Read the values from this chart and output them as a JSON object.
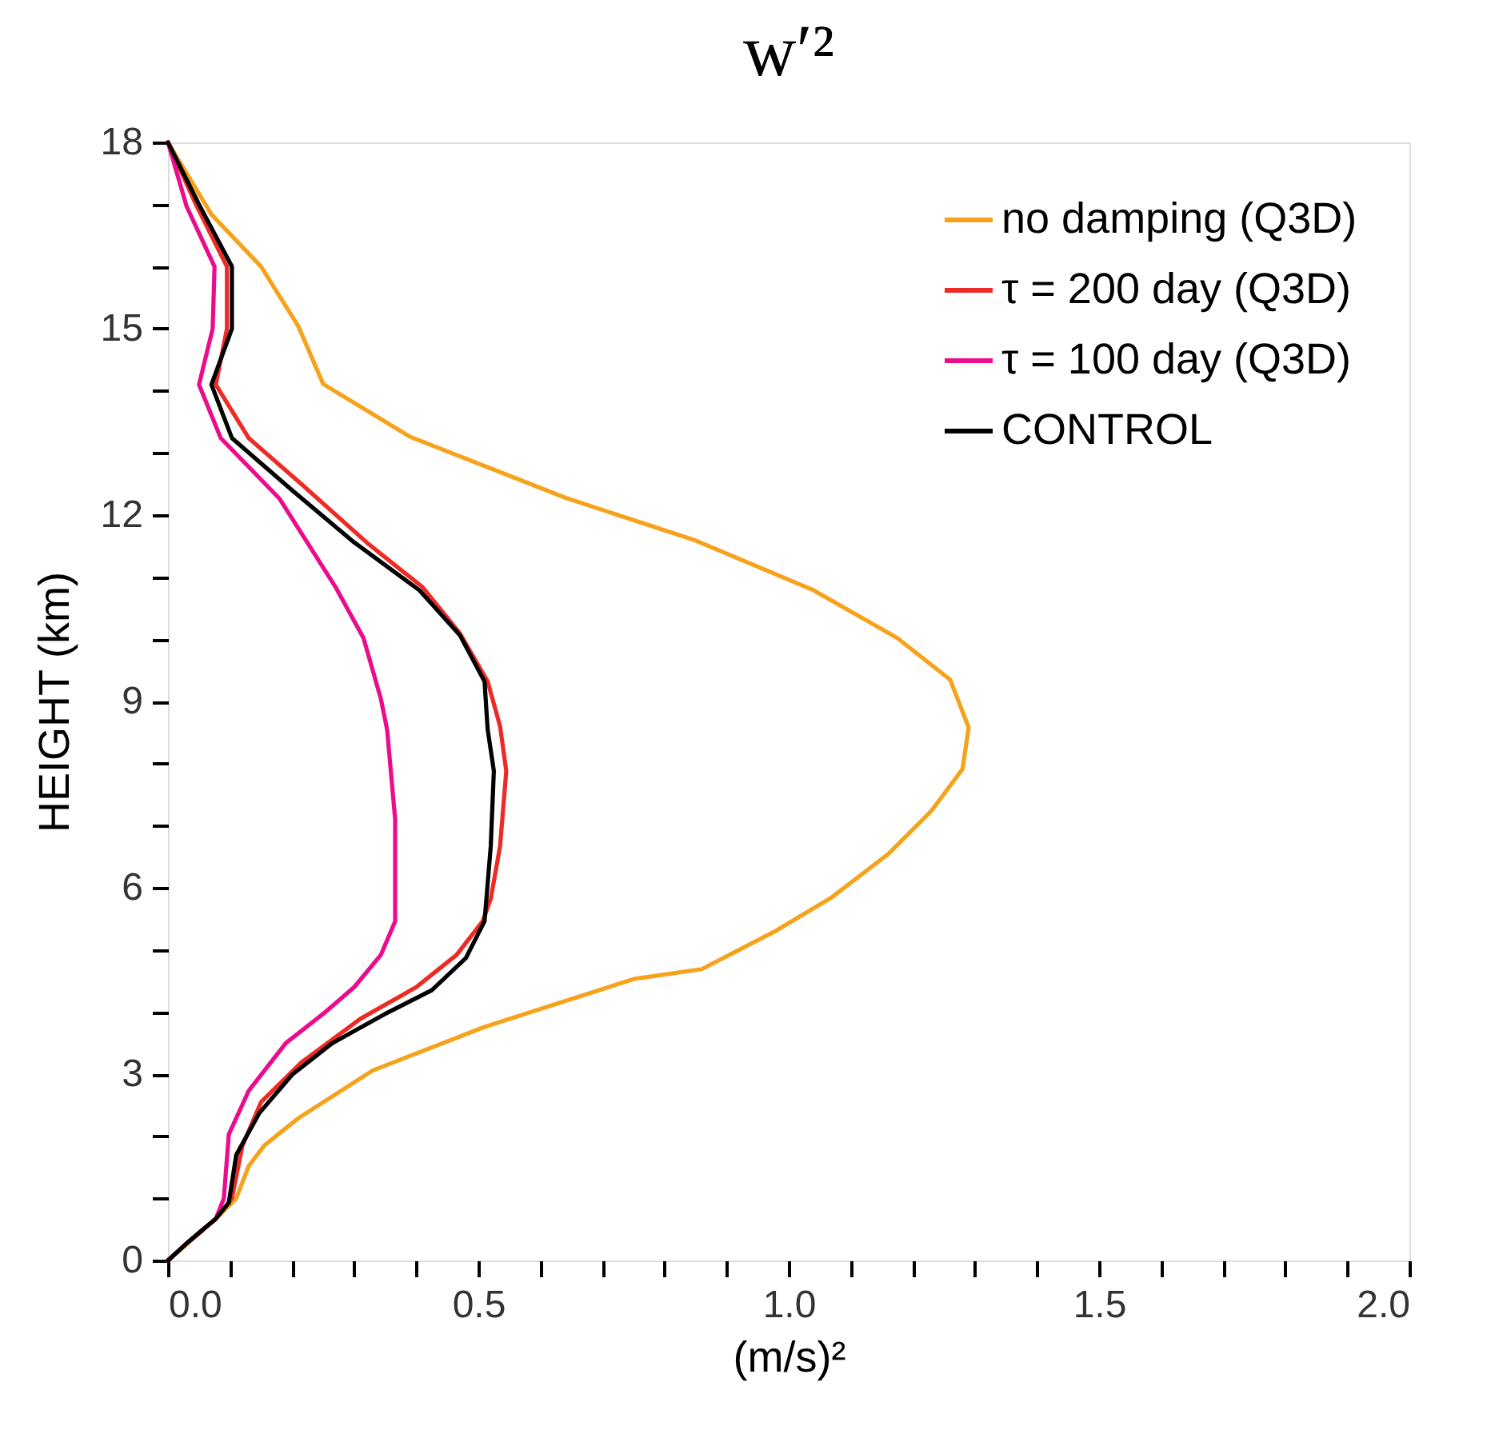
{
  "chart_data": {
    "type": "line",
    "title": "w′²",
    "xlabel": "(m/s)²",
    "ylabel": "HEIGHT (km)",
    "xlim": [
      0,
      2
    ],
    "ylim": [
      0,
      18
    ],
    "xticks": [
      {
        "value": 0,
        "label": "0.0"
      },
      {
        "value": 0.1,
        "label": null
      },
      {
        "value": 0.2,
        "label": null
      },
      {
        "value": 0.3,
        "label": null
      },
      {
        "value": 0.4,
        "label": null
      },
      {
        "value": 0.5,
        "label": "0.5"
      },
      {
        "value": 0.6,
        "label": null
      },
      {
        "value": 0.7,
        "label": null
      },
      {
        "value": 0.8,
        "label": null
      },
      {
        "value": 0.9,
        "label": null
      },
      {
        "value": 1,
        "label": "1.0"
      },
      {
        "value": 1.1,
        "label": null
      },
      {
        "value": 1.2,
        "label": null
      },
      {
        "value": 1.3,
        "label": null
      },
      {
        "value": 1.4,
        "label": null
      },
      {
        "value": 1.5,
        "label": "1.5"
      },
      {
        "value": 1.6,
        "label": null
      },
      {
        "value": 1.7,
        "label": null
      },
      {
        "value": 1.8,
        "label": null
      },
      {
        "value": 1.9,
        "label": null
      },
      {
        "value": 2,
        "label": "2.0"
      }
    ],
    "yticks": [
      0,
      {
        "value": 1,
        "label": null
      },
      {
        "value": 2,
        "label": null
      },
      3,
      {
        "value": 4,
        "label": null
      },
      {
        "value": 5,
        "label": null
      },
      6,
      {
        "value": 7,
        "label": null
      },
      {
        "value": 8,
        "label": null
      },
      9,
      {
        "value": 10,
        "label": null
      },
      {
        "value": 11,
        "label": null
      },
      12,
      {
        "value": 13,
        "label": null
      },
      {
        "value": 14,
        "label": null
      },
      15,
      {
        "value": 16,
        "label": null
      },
      {
        "value": 17,
        "label": null
      },
      18
    ],
    "grid": false,
    "legend": "top right",
    "line_style": "solid",
    "marker": "none",
    "series": [
      {
        "name": "no damping (Q3D)",
        "color": "#f7a21b",
        "x": [
          0,
          0.07,
          0.15,
          0.21,
          0.25,
          0.39,
          0.64,
          0.85,
          1.04,
          1.175,
          1.26,
          1.29,
          1.28,
          1.23,
          1.16,
          1.07,
          0.98,
          0.86,
          0.75,
          0.51,
          0.33,
          0.21,
          0.155,
          0.13,
          0.11,
          0.077,
          0
        ],
        "values": [
          18,
          16.84,
          16,
          15.04,
          14.11,
          13.26,
          12.28,
          11.59,
          10.79,
          10.02,
          9.35,
          8.58,
          7.91,
          7.24,
          6.54,
          5.85,
          5.31,
          4.69,
          4.53,
          3.76,
          3.06,
          2.29,
          1.85,
          1.52,
          1,
          0.67,
          0
        ]
      },
      {
        "name": "τ = 200 day (Q3D)",
        "color": "#ee2a24",
        "x": [
          0,
          0.045,
          0.095,
          0.095,
          0.077,
          0.13,
          0.215,
          0.32,
          0.41,
          0.47,
          0.515,
          0.535,
          0.545,
          0.535,
          0.52,
          0.507,
          0.465,
          0.4,
          0.31,
          0.215,
          0.15,
          0.12,
          0.103,
          0.077,
          0.034,
          0
        ],
        "values": [
          18,
          17,
          16,
          15,
          14.1,
          13.24,
          12.5,
          11.56,
          10.84,
          10.1,
          9.32,
          8.6,
          7.88,
          6.67,
          5.82,
          5.46,
          4.92,
          4.4,
          3.89,
          3.19,
          2.55,
          1.85,
          1,
          0.67,
          0.31,
          0
        ]
      },
      {
        "name": "τ = 100 day (Q3D)",
        "color": "#ec0b8c",
        "x": [
          0,
          0.03,
          0.075,
          0.072,
          0.05,
          0.085,
          0.18,
          0.27,
          0.315,
          0.343,
          0.353,
          0.366,
          0.366,
          0.343,
          0.3,
          0.25,
          0.19,
          0.13,
          0.098,
          0.09,
          0.077,
          0.034,
          0
        ],
        "values": [
          18,
          16.97,
          16,
          15,
          14.1,
          13.24,
          12.26,
          10.84,
          10.02,
          9.04,
          8.55,
          7.1,
          5.46,
          4.92,
          4.4,
          3.97,
          3.5,
          2.73,
          2.03,
          1,
          0.67,
          0.31,
          0
        ]
      },
      {
        "name": "CONTROL",
        "color": "#000000",
        "x": [
          0,
          0.05,
          0.103,
          0.103,
          0.07,
          0.103,
          0.2,
          0.3,
          0.405,
          0.47,
          0.51,
          0.515,
          0.525,
          0.52,
          0.51,
          0.48,
          0.425,
          0.35,
          0.265,
          0.2,
          0.147,
          0.11,
          0.098,
          0.077,
          0.034,
          0
        ],
        "values": [
          18,
          17,
          16,
          15,
          14.1,
          13.24,
          12.4,
          11.56,
          10.79,
          10.07,
          9.32,
          8.55,
          7.88,
          6.67,
          5.46,
          4.87,
          4.35,
          3.97,
          3.5,
          2.99,
          2.37,
          1.7,
          0.93,
          0.67,
          0.31,
          0
        ]
      }
    ]
  }
}
